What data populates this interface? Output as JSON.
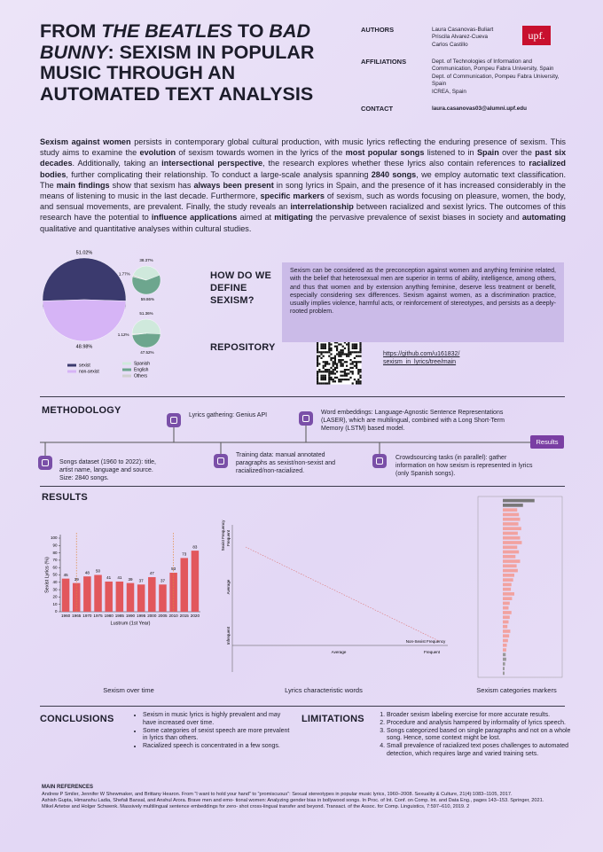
{
  "header": {
    "title": [
      {
        "text": "FROM ",
        "italic": false
      },
      {
        "text": "THE BEATLES",
        "italic": true
      },
      {
        "text": " TO ",
        "italic": false
      },
      {
        "text": "BAD BUNNY",
        "italic": true
      },
      {
        "text": ": SEXISM IN POPULAR MUSIC THROUGH AN AUTOMATED TEXT ANALYSIS",
        "italic": false
      }
    ],
    "authors_label": "AUTHORS",
    "authors": [
      "Laura Casanovas-Buliart",
      "Priscila Alvarez-Cueva",
      "Carlos Castillo"
    ],
    "affiliations_label": "AFFILIATIONS",
    "affiliations": [
      "Dept. of Technologies of Information and Communication, Pompeu Fabra University, Spain",
      "Dept. of Communication, Pompeu Fabra University, Spain",
      "ICREA, Spain"
    ],
    "contact_label": "CONTACT",
    "contact": "laura.casanovas03@alumni.upf.edu",
    "logo": "upf."
  },
  "abstract": [
    {
      "text": "Sexism against women",
      "bold": true
    },
    {
      "text": " persists in contemporary global cultural production, with music lyrics reflecting the enduring presence of sexism. This study aims to examine the ",
      "bold": false
    },
    {
      "text": "evolution",
      "bold": true
    },
    {
      "text": " of sexism towards women in the lyrics of the ",
      "bold": false
    },
    {
      "text": "most popular songs",
      "bold": true
    },
    {
      "text": " listened to in ",
      "bold": false
    },
    {
      "text": "Spain",
      "bold": true
    },
    {
      "text": " over the ",
      "bold": false
    },
    {
      "text": "past six decades",
      "bold": true
    },
    {
      "text": ". Additionally, taking an ",
      "bold": false
    },
    {
      "text": "intersectional perspective",
      "bold": true
    },
    {
      "text": ", the research explores whether these lyrics also contain references to ",
      "bold": false
    },
    {
      "text": "racialized bodies",
      "bold": true
    },
    {
      "text": ", further complicating their relationship. To conduct a large-scale analysis spanning ",
      "bold": false
    },
    {
      "text": "2840 songs",
      "bold": true
    },
    {
      "text": ", we employ automatic text classification. The ",
      "bold": false
    },
    {
      "text": "main findings",
      "bold": true
    },
    {
      "text": " show that sexism has ",
      "bold": false
    },
    {
      "text": "always been present",
      "bold": true
    },
    {
      "text": " in song lyrics in Spain, and the presence of it has increased considerably in the means of listening to music in the last decade. Furthermore, ",
      "bold": false
    },
    {
      "text": "specific markers",
      "bold": true
    },
    {
      "text": " of sexism, such as words focusing on pleasure, women, the body, and sensual movements, are prevalent. Finally, the study reveals an ",
      "bold": false
    },
    {
      "text": "interrelationship",
      "bold": true
    },
    {
      "text": " between racialized and sexist lyrics. The outcomes of this research have the potential to ",
      "bold": false
    },
    {
      "text": "influence applications",
      "bold": true
    },
    {
      "text": " aimed at ",
      "bold": false
    },
    {
      "text": "mitigating",
      "bold": true
    },
    {
      "text": " the pervasive prevalence of sexist biases in society and ",
      "bold": false
    },
    {
      "text": "automating",
      "bold": true
    },
    {
      "text": " qualitative and quantitative analyses within cultural studies.",
      "bold": false
    }
  ],
  "definition": {
    "heading": "HOW DO WE DEFINE SEXISM?",
    "text": "Sexism can be considered as the preconception against women and anything feminine related, with the belief that heterosexual men are superior in terms of ability, intelligence, among others, and thus that women and by extension anything feminine, deserve less treatment or benefit, especially considering sex differences. Sexism against women, as a discrimination practice, usually implies violence, harmful acts, or reinforcement of stereotypes, and persists as a deeply-rooted problem."
  },
  "repository": {
    "heading": "REPOSITORY",
    "link": [
      "https://github.com/u161832/",
      "sexism_in_lyrics/tree/main"
    ]
  },
  "methodology": {
    "heading": "METHODOLOGY",
    "steps": [
      "Lyrics gathering: Genius API",
      "Word embeddings: Language-Agnostic Sentence Representations (LASER), which are multilingual, combined with a Long Short-Term Memory (LSTM) based model.",
      "Songs dataset (1960 to 2022): title, artist name, language and source. Size: 2840 songs.",
      "Training data: manual annotated paragraphs as sexist/non-sexist and racialized/non-racialized.",
      "Crowdsourcing tasks (in parallel): gather information on how sexism is represented in lyrics (only Spanish songs)."
    ],
    "results_button": "Results"
  },
  "results": {
    "heading": "RESULTS",
    "captions": [
      "Sexism over time",
      "Lyrics characteristic words",
      "Sexism categories markers"
    ]
  },
  "chart_data": [
    {
      "type": "pie",
      "labels": [
        "sexist",
        "non-sexist"
      ],
      "values": [
        51.02,
        48.98
      ],
      "value_labels": [
        "51.02%",
        "48.98%"
      ],
      "colors": [
        "#3b3a6e",
        "#d6b4f6"
      ]
    },
    {
      "type": "pie",
      "labels": [
        "Spanish",
        "English",
        "Others"
      ],
      "values": [
        38.37,
        59.86,
        1.77
      ],
      "value_labels": [
        "38.37%",
        "59.86%",
        "1.77%"
      ],
      "colors": [
        "#cfe9dc",
        "#6da68e",
        "#d0d0d0"
      ]
    },
    {
      "type": "pie",
      "labels": [
        "Spanish",
        "English",
        "Others"
      ],
      "values": [
        51.36,
        47.52,
        1.12
      ],
      "value_labels": [
        "51.36%",
        "47.52%",
        "1.12%"
      ],
      "colors": [
        "#cfe9dc",
        "#6da68e",
        "#d0d0d0"
      ]
    },
    {
      "type": "bar",
      "y_label": "Sexist Lyrics (%)",
      "x_label": "Lustrum (1st Year)",
      "categories": [
        "1960",
        "1965",
        "1970",
        "1975",
        "1980",
        "1985",
        "1990",
        "1995",
        "2000",
        "2005",
        "2010",
        "2015",
        "2020"
      ],
      "values": [
        45,
        39,
        48,
        50,
        41,
        41,
        39,
        37,
        47,
        37,
        53,
        73,
        83
      ],
      "color": "#e2575c",
      "markers": [
        "1965",
        "2010"
      ],
      "marker_color": "#e0873a",
      "ylim": [
        0,
        100
      ],
      "yticks": [
        0,
        10,
        20,
        30,
        40,
        50,
        60,
        70,
        80,
        90,
        100
      ]
    },
    {
      "type": "words",
      "x_label": "Non-Sexist Frequency",
      "y_label": "Sexist Frequency",
      "x_levels": [
        "Average",
        "Frequent"
      ],
      "y_levels": [
        "Frequent",
        "Average",
        "Infrequent"
      ]
    },
    {
      "type": "hbar",
      "xlim": [
        0,
        1
      ],
      "values": [
        0.55,
        0.35,
        0.25,
        0.28,
        0.3,
        0.27,
        0.32,
        0.26,
        0.3,
        0.33,
        0.25,
        0.28,
        0.22,
        0.3,
        0.24,
        0.26,
        0.2,
        0.18,
        0.15,
        0.14,
        0.2,
        0.16,
        0.12,
        0.1,
        0.15,
        0.12,
        0.1,
        0.08,
        0.13,
        0.11,
        0.09,
        0.07,
        0.06,
        0.05,
        0.06,
        0.04,
        0.03,
        0.03
      ],
      "colors": [
        "#777777",
        "#777777",
        "#f2a2a0",
        "#f2a2a0",
        "#f2a2a0",
        "#f2a2a0",
        "#f2a2a0",
        "#f2a2a0",
        "#f2a2a0",
        "#f2a2a0",
        "#f2a2a0",
        "#f2a2a0",
        "#f2a2a0",
        "#f2a2a0",
        "#f2a2a0",
        "#f2a2a0",
        "#f2a2a0",
        "#f2a2a0",
        "#f2a2a0",
        "#f2a2a0",
        "#f2a2a0",
        "#f2a2a0",
        "#f2a2a0",
        "#f2a2a0",
        "#f2a2a0",
        "#f2a2a0",
        "#f2a2a0",
        "#f2a2a0",
        "#f2a2a0",
        "#f2a2a0",
        "#f2a2a0",
        "#f2a2a0",
        "#f2a2a0",
        "#999999",
        "#999999",
        "#999999",
        "#999999",
        "#999999"
      ]
    }
  ],
  "conclusions": {
    "heading": "CONCLUSIONS",
    "items": [
      "Sexism in music lyrics is highly prevalent and may have increased over time.",
      "Some categories of sexist speech are more prevalent in lyrics than others.",
      "Racialized speech is concentrated in a few songs."
    ]
  },
  "limitations": {
    "heading": "LIMITATIONS",
    "items": [
      "Broader sexism labeling exercise for more accurate results.",
      "Procedure and analysis hampered by informality of lyrics speech.",
      "Songs categorized based on single paragraphs and not on a whole song. Hence, some context might be lost.",
      "Small prevalence of racialized text poses challenges to automated detection, which requires large and varied training sets."
    ]
  },
  "references": {
    "heading": "MAIN REFERENCES",
    "items": [
      "Andrew P Smiler, Jennifer W Shewmaker, and Brittany Hearon. From “I want to hold your hand” to “promiscuous”: Sexual stereotypes in popular music lyrics, 1960–2008. Sexuality & Culture, 21(4):1083–1105, 2017.",
      "Ashish Gupta, Himanshu Ladia, Shefali Bansal, and Anshul Arora. Brave men and emo- tional women: Analyzing gender bias in bollywood songs. In Proc. of Int. Conf. on Comp. Int. and Data Eng., pages 143–153. Springer, 2021.",
      "Mikel Artetxe and Holger Schwenk. Massively multilingual sentence embeddings for zero- shot cross-lingual transfer and beyond. Transact. of the Assoc. for Comp. Linguistics, 7:597–610, 2019. 2"
    ]
  }
}
